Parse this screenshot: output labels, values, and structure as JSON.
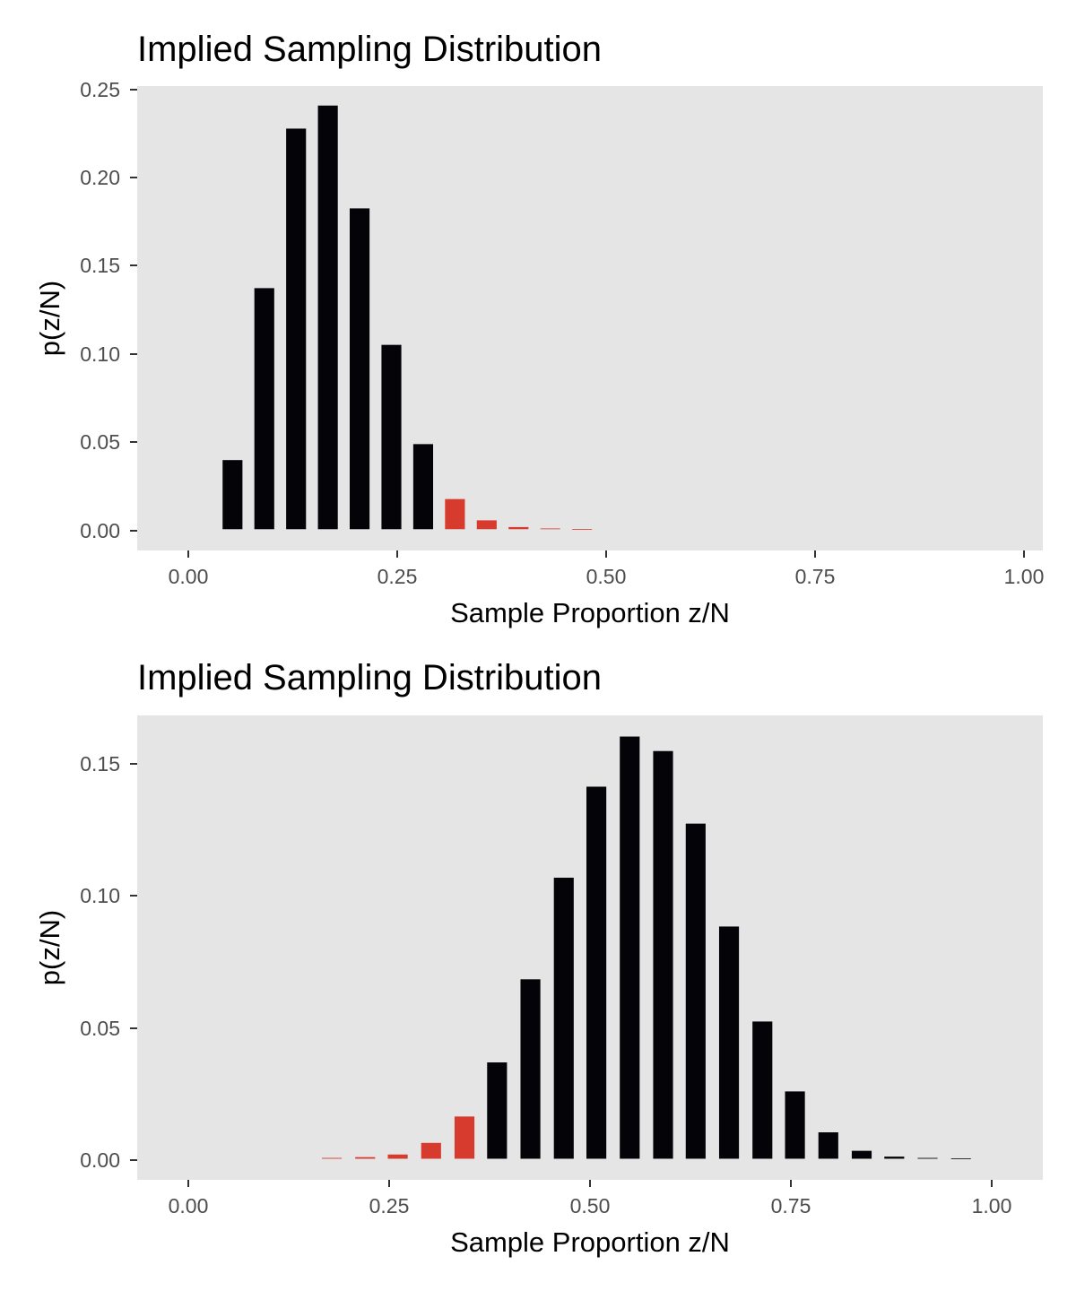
{
  "chart_data": [
    {
      "type": "bar",
      "title": "Implied Sampling Distribution",
      "xlabel": "Sample Proportion z/N",
      "ylabel": "p(z/N)",
      "xlim": [
        -0.12,
        1.02
      ],
      "ylim": [
        -0.012,
        0.25
      ],
      "x_ticks": [
        0,
        0.25,
        0.5,
        0.75,
        1
      ],
      "x_tick_labels": [
        "0.00",
        "0.25",
        "0.50",
        "0.75",
        "1.00"
      ],
      "y_ticks": [
        0,
        0.05,
        0.1,
        0.15,
        0.2,
        0.25
      ],
      "y_tick_labels": [
        "0.00",
        "0.05",
        "0.10",
        "0.15",
        "0.20",
        "0.25"
      ],
      "bar_width": 0.025,
      "grid": false,
      "colors": {
        "normal": "#040408",
        "highlight": "#d63b2e",
        "panel": "#e5e5e5",
        "axis": "#333333"
      },
      "x": [
        0,
        0.04,
        0.08,
        0.12,
        0.16,
        0.2,
        0.24,
        0.28,
        0.32,
        0.36,
        0.4,
        0.44
      ],
      "values": [
        0.039,
        0.136,
        0.226,
        0.239,
        0.181,
        0.104,
        0.048,
        0.017,
        0.005,
        0.0012,
        0.0004,
        0.0001
      ],
      "highlighted": [
        false,
        false,
        false,
        false,
        false,
        false,
        false,
        true,
        true,
        true,
        true,
        true
      ]
    },
    {
      "type": "bar",
      "title": "Implied Sampling Distribution",
      "xlabel": "Sample Proportion z/N",
      "ylabel": "p(z/N)",
      "xlim": [
        -0.12,
        1.02
      ],
      "ylim": [
        -0.008,
        0.168
      ],
      "x_ticks": [
        0,
        0.25,
        0.5,
        0.75,
        1
      ],
      "x_tick_labels": [
        "0.00",
        "0.25",
        "0.50",
        "0.75",
        "1.00"
      ],
      "y_ticks": [
        0,
        0.05,
        0.1,
        0.15
      ],
      "y_tick_labels": [
        "0.00",
        "0.05",
        "0.10",
        "0.15"
      ],
      "bar_width": 0.025,
      "grid": false,
      "colors": {
        "normal": "#040408",
        "highlight": "#d63b2e",
        "panel": "#e5e5e5",
        "axis": "#333333"
      },
      "x": [
        0.125,
        0.167,
        0.208,
        0.25,
        0.292,
        0.333,
        0.375,
        0.417,
        0.458,
        0.5,
        0.542,
        0.583,
        0.625,
        0.667,
        0.708,
        0.75,
        0.792,
        0.833,
        0.875,
        0.917
      ],
      "values": [
        0.0003,
        0.0006,
        0.0016,
        0.006,
        0.016,
        0.0365,
        0.068,
        0.1065,
        0.141,
        0.16,
        0.1545,
        0.127,
        0.088,
        0.052,
        0.0255,
        0.01,
        0.003,
        0.0008,
        0.0003,
        0.0001
      ],
      "highlighted": [
        true,
        true,
        true,
        true,
        true,
        false,
        false,
        false,
        false,
        false,
        false,
        false,
        false,
        false,
        false,
        false,
        false,
        false,
        false,
        false
      ]
    }
  ]
}
